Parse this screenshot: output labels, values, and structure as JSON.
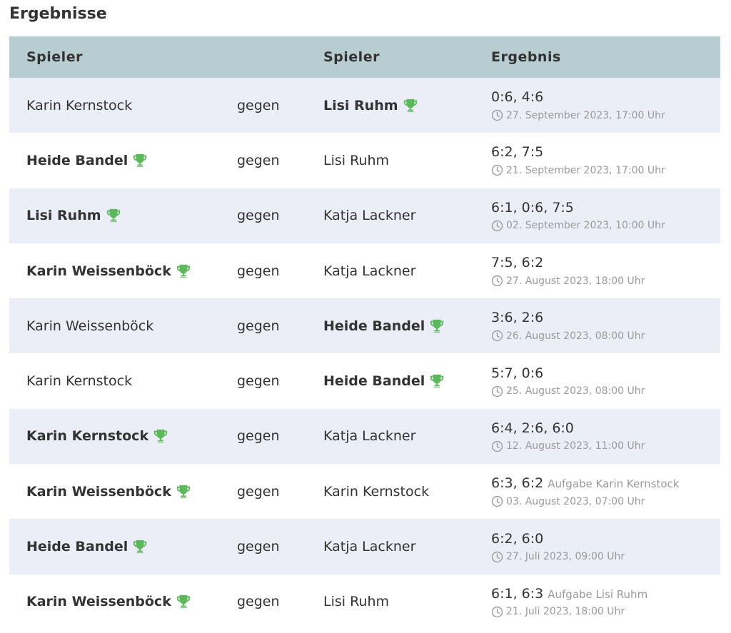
{
  "title": "Ergebnisse",
  "headers": {
    "player1": "Spieler",
    "vs": "gegen",
    "player2": "Spieler",
    "result": "Ergebnis"
  },
  "trophy_color": "#5cb85c",
  "rows": [
    {
      "p1": "Karin Kernstock",
      "p1_win": false,
      "vs": "gegen",
      "p2": "Lisi Ruhm",
      "p2_win": true,
      "score": "0:6, 4:6",
      "note": "",
      "date": "27. September 2023, 17:00 Uhr"
    },
    {
      "p1": "Heide Bandel",
      "p1_win": true,
      "vs": "gegen",
      "p2": "Lisi Ruhm",
      "p2_win": false,
      "score": "6:2, 7:5",
      "note": "",
      "date": "21. September 2023, 17:00 Uhr"
    },
    {
      "p1": "Lisi Ruhm",
      "p1_win": true,
      "vs": "gegen",
      "p2": "Katja Lackner",
      "p2_win": false,
      "score": "6:1, 0:6, 7:5",
      "note": "",
      "date": "02. September 2023, 10:00 Uhr"
    },
    {
      "p1": "Karin Weissenböck",
      "p1_win": true,
      "vs": "gegen",
      "p2": "Katja Lackner",
      "p2_win": false,
      "score": "7:5, 6:2",
      "note": "",
      "date": "27. August 2023, 18:00 Uhr"
    },
    {
      "p1": "Karin Weissenböck",
      "p1_win": false,
      "vs": "gegen",
      "p2": "Heide Bandel",
      "p2_win": true,
      "score": "3:6, 2:6",
      "note": "",
      "date": "26. August 2023, 08:00 Uhr"
    },
    {
      "p1": "Karin Kernstock",
      "p1_win": false,
      "vs": "gegen",
      "p2": "Heide Bandel",
      "p2_win": true,
      "score": "5:7, 0:6",
      "note": "",
      "date": "25. August 2023, 08:00 Uhr"
    },
    {
      "p1": "Karin Kernstock",
      "p1_win": true,
      "vs": "gegen",
      "p2": "Katja Lackner",
      "p2_win": false,
      "score": "6:4, 2:6, 6:0",
      "note": "",
      "date": "12. August 2023, 11:00 Uhr"
    },
    {
      "p1": "Karin Weissenböck",
      "p1_win": true,
      "vs": "gegen",
      "p2": "Karin Kernstock",
      "p2_win": false,
      "score": "6:3, 6:2",
      "note": "Aufgabe Karin Kernstock",
      "date": "03. August 2023, 07:00 Uhr"
    },
    {
      "p1": "Heide Bandel",
      "p1_win": true,
      "vs": "gegen",
      "p2": "Katja Lackner",
      "p2_win": false,
      "score": "6:2, 6:0",
      "note": "",
      "date": "27. Juli 2023, 09:00 Uhr"
    },
    {
      "p1": "Karin Weissenböck",
      "p1_win": true,
      "vs": "gegen",
      "p2": "Lisi Ruhm",
      "p2_win": false,
      "score": "6:1, 6:3",
      "note": "Aufgabe Lisi Ruhm",
      "date": "21. Juli 2023, 18:00 Uhr"
    }
  ]
}
